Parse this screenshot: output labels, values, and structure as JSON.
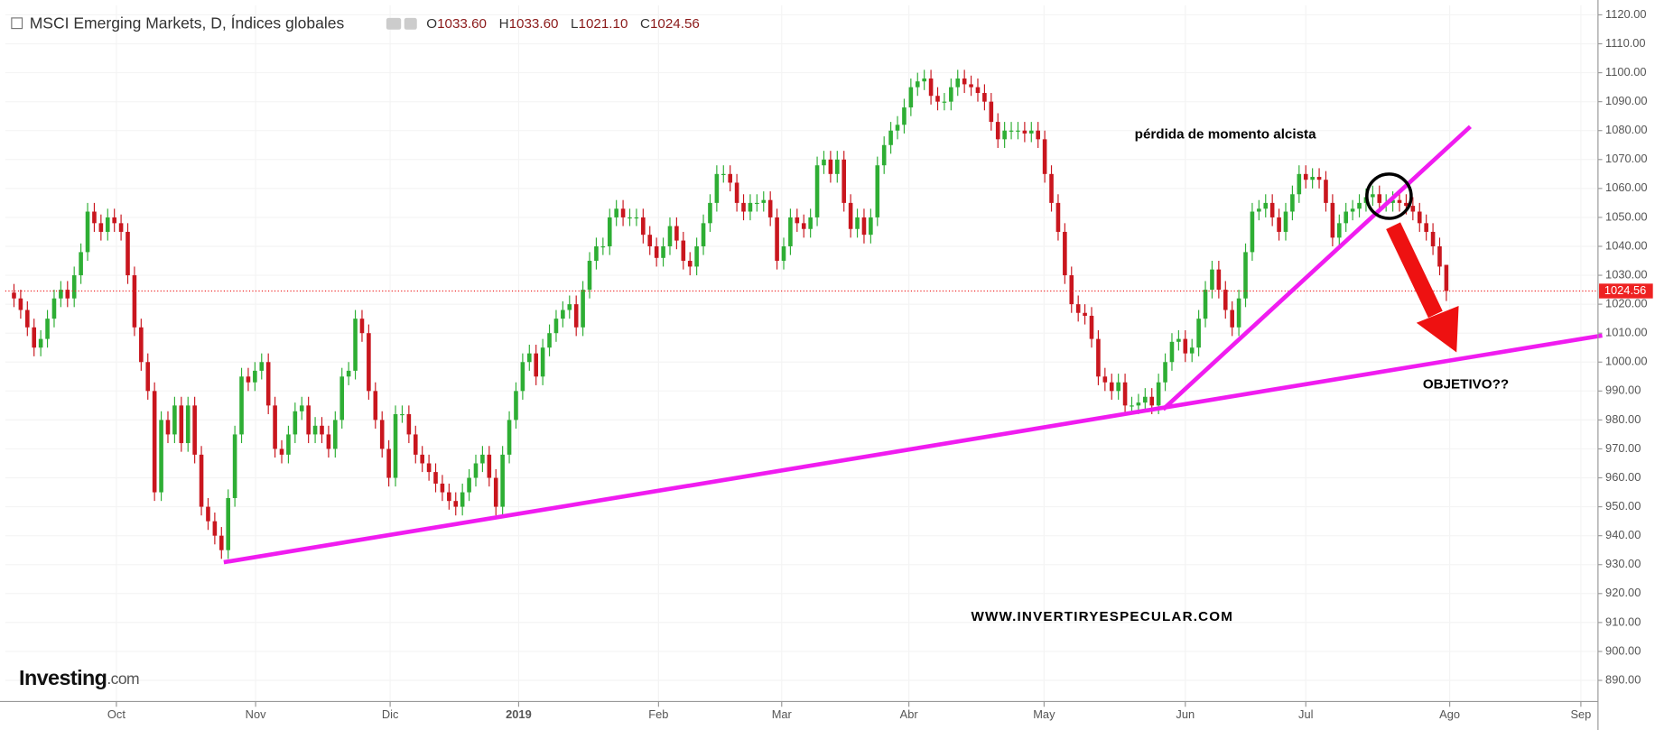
{
  "chart_data": {
    "type": "candlestick",
    "header": {
      "title": "MSCI Emerging Markets, D, Índices globales",
      "open_label": "O",
      "open": "1033.60",
      "high_label": "H",
      "high": "1033.60",
      "low_label": "L",
      "low": "1021.10",
      "close_label": "C",
      "close": "1024.56"
    },
    "annotations": {
      "momentum": "pérdida de momento alcista",
      "target": "OBJETIVO??",
      "website": "WWW.INVERTIRYESPECULAR.COM"
    },
    "logo": {
      "brand": "Investing",
      "domain": ".com"
    },
    "up_color": "#2eae34",
    "down_color": "#c9161e",
    "grid": true,
    "ylim": [
      882.7,
      1123.3
    ],
    "yticks": [
      {
        "value": 890,
        "label": "890.00"
      },
      {
        "value": 900,
        "label": "900.00"
      },
      {
        "value": 910,
        "label": "910.00"
      },
      {
        "value": 920,
        "label": "920.00"
      },
      {
        "value": 930,
        "label": "930.00"
      },
      {
        "value": 940,
        "label": "940.00"
      },
      {
        "value": 950,
        "label": "950.00"
      },
      {
        "value": 960,
        "label": "960.00"
      },
      {
        "value": 970,
        "label": "970.00"
      },
      {
        "value": 980,
        "label": "980.00"
      },
      {
        "value": 990,
        "label": "990.00"
      },
      {
        "value": 1000,
        "label": "1000.00"
      },
      {
        "value": 1010,
        "label": "1010.00"
      },
      {
        "value": 1020,
        "label": "1020.00"
      },
      {
        "value": 1030,
        "label": "1030.00"
      },
      {
        "value": 1040,
        "label": "1040.00"
      },
      {
        "value": 1050,
        "label": "1050.00"
      },
      {
        "value": 1060,
        "label": "1060.00"
      },
      {
        "value": 1070,
        "label": "1070.00"
      },
      {
        "value": 1080,
        "label": "1080.00"
      },
      {
        "value": 1090,
        "label": "1090.00"
      },
      {
        "value": 1100,
        "label": "1100.00"
      },
      {
        "value": 1110,
        "label": "1110.00"
      },
      {
        "value": 1120,
        "label": "1120.00"
      }
    ],
    "xlim": [
      -1.3,
      236.5
    ],
    "xticks": [
      {
        "value": 15.3,
        "label": "Oct"
      },
      {
        "value": 36.1,
        "label": "Nov"
      },
      {
        "value": 56.2,
        "label": "Dic"
      },
      {
        "value": 75.4,
        "label": "2019"
      },
      {
        "value": 96.3,
        "label": "Feb"
      },
      {
        "value": 114.7,
        "label": "Mar"
      },
      {
        "value": 133.7,
        "label": "Abr"
      },
      {
        "value": 153.9,
        "label": "May"
      },
      {
        "value": 175,
        "label": "Jun"
      },
      {
        "value": 193,
        "label": "Jul"
      },
      {
        "value": 214.5,
        "label": "Ago"
      },
      {
        "value": 234.1,
        "label": "Sep"
      }
    ],
    "candles": [
      [
        1024,
        1027,
        1019,
        1022
      ],
      [
        1022,
        1025,
        1015,
        1018
      ],
      [
        1018,
        1021,
        1009,
        1012
      ],
      [
        1012,
        1015,
        1002,
        1005
      ],
      [
        1005,
        1011,
        1002,
        1008
      ],
      [
        1008,
        1018,
        1005,
        1015
      ],
      [
        1015,
        1025,
        1012,
        1022
      ],
      [
        1022,
        1028,
        1019,
        1025
      ],
      [
        1025,
        1028,
        1019,
        1022
      ],
      [
        1022,
        1033,
        1019,
        1030
      ],
      [
        1030,
        1041,
        1027,
        1038
      ],
      [
        1038,
        1055,
        1035,
        1052
      ],
      [
        1052,
        1055,
        1045,
        1048
      ],
      [
        1048,
        1051,
        1042,
        1045
      ],
      [
        1045,
        1053,
        1042,
        1050
      ],
      [
        1050,
        1053,
        1045,
        1048
      ],
      [
        1048,
        1051,
        1042,
        1045
      ],
      [
        1045,
        1048,
        1027,
        1030
      ],
      [
        1030,
        1033,
        1009,
        1012
      ],
      [
        1012,
        1015,
        997,
        1000
      ],
      [
        1000,
        1003,
        987,
        990
      ],
      [
        990,
        993,
        952,
        955
      ],
      [
        955,
        983,
        952,
        980
      ],
      [
        980,
        983,
        972,
        975
      ],
      [
        975,
        988,
        972,
        985
      ],
      [
        985,
        988,
        969,
        972
      ],
      [
        972,
        988,
        969,
        985
      ],
      [
        985,
        988,
        965,
        968
      ],
      [
        968,
        971,
        947,
        950
      ],
      [
        950,
        953,
        942,
        945
      ],
      [
        945,
        948,
        937,
        940
      ],
      [
        940,
        943,
        932,
        935
      ],
      [
        935,
        956,
        932,
        953
      ],
      [
        953,
        978,
        950,
        975
      ],
      [
        975,
        998,
        972,
        995
      ],
      [
        995,
        998,
        990,
        993
      ],
      [
        993,
        1000,
        990,
        997
      ],
      [
        997,
        1003,
        994,
        1000
      ],
      [
        1000,
        1003,
        982,
        985
      ],
      [
        985,
        988,
        967,
        970
      ],
      [
        970,
        973,
        965,
        968
      ],
      [
        968,
        978,
        965,
        975
      ],
      [
        975,
        986,
        972,
        983
      ],
      [
        983,
        988,
        980,
        985
      ],
      [
        985,
        988,
        972,
        975
      ],
      [
        975,
        981,
        972,
        978
      ],
      [
        978,
        981,
        972,
        975
      ],
      [
        975,
        978,
        967,
        970
      ],
      [
        970,
        983,
        967,
        980
      ],
      [
        980,
        998,
        977,
        995
      ],
      [
        995,
        1000,
        992,
        997
      ],
      [
        997,
        1018,
        994,
        1015
      ],
      [
        1015,
        1018,
        1007,
        1010
      ],
      [
        1010,
        1013,
        987,
        990
      ],
      [
        990,
        993,
        977,
        980
      ],
      [
        980,
        983,
        967,
        970
      ],
      [
        970,
        973,
        957,
        960
      ],
      [
        960,
        985,
        957,
        982
      ],
      [
        982,
        985,
        979,
        982
      ],
      [
        982,
        985,
        972,
        975
      ],
      [
        975,
        978,
        965,
        968
      ],
      [
        968,
        971,
        962,
        965
      ],
      [
        965,
        968,
        959,
        962
      ],
      [
        962,
        965,
        955,
        958
      ],
      [
        958,
        961,
        952,
        955
      ],
      [
        955,
        958,
        949,
        952
      ],
      [
        952,
        955,
        947,
        950
      ],
      [
        950,
        958,
        947,
        955
      ],
      [
        955,
        963,
        952,
        960
      ],
      [
        960,
        968,
        957,
        965
      ],
      [
        965,
        971,
        962,
        968
      ],
      [
        968,
        971,
        957,
        960
      ],
      [
        960,
        963,
        947,
        950
      ],
      [
        950,
        971,
        947,
        968
      ],
      [
        968,
        983,
        965,
        980
      ],
      [
        980,
        993,
        977,
        990
      ],
      [
        990,
        1003,
        987,
        1000
      ],
      [
        1000,
        1006,
        997,
        1003
      ],
      [
        1003,
        1006,
        992,
        995
      ],
      [
        995,
        1008,
        992,
        1005
      ],
      [
        1005,
        1013,
        1002,
        1010
      ],
      [
        1010,
        1018,
        1007,
        1015
      ],
      [
        1015,
        1021,
        1012,
        1018
      ],
      [
        1018,
        1023,
        1015,
        1020
      ],
      [
        1020,
        1023,
        1009,
        1012
      ],
      [
        1012,
        1028,
        1009,
        1025
      ],
      [
        1025,
        1038,
        1022,
        1035
      ],
      [
        1035,
        1043,
        1032,
        1040
      ],
      [
        1040,
        1043,
        1037,
        1040
      ],
      [
        1040,
        1053,
        1037,
        1050
      ],
      [
        1050,
        1056,
        1047,
        1053
      ],
      [
        1053,
        1056,
        1047,
        1050
      ],
      [
        1050,
        1053,
        1047,
        1050
      ],
      [
        1050,
        1053,
        1047,
        1050
      ],
      [
        1050,
        1053,
        1041,
        1044
      ],
      [
        1044,
        1047,
        1037,
        1040
      ],
      [
        1040,
        1043,
        1033,
        1036
      ],
      [
        1036,
        1043,
        1033,
        1040
      ],
      [
        1040,
        1050,
        1037,
        1047
      ],
      [
        1047,
        1050,
        1039,
        1042
      ],
      [
        1042,
        1045,
        1032,
        1035
      ],
      [
        1035,
        1038,
        1030,
        1033
      ],
      [
        1033,
        1043,
        1030,
        1040
      ],
      [
        1040,
        1051,
        1037,
        1048
      ],
      [
        1048,
        1058,
        1045,
        1055
      ],
      [
        1055,
        1068,
        1052,
        1065
      ],
      [
        1065,
        1068,
        1062,
        1065
      ],
      [
        1065,
        1068,
        1059,
        1062
      ],
      [
        1062,
        1065,
        1052,
        1055
      ],
      [
        1055,
        1058,
        1049,
        1052
      ],
      [
        1052,
        1058,
        1049,
        1055
      ],
      [
        1055,
        1058,
        1052,
        1055
      ],
      [
        1055,
        1059,
        1052,
        1056
      ],
      [
        1056,
        1059,
        1047,
        1050
      ],
      [
        1050,
        1053,
        1032,
        1035
      ],
      [
        1035,
        1043,
        1032,
        1040
      ],
      [
        1040,
        1053,
        1037,
        1050
      ],
      [
        1050,
        1053,
        1045,
        1048
      ],
      [
        1048,
        1051,
        1043,
        1046
      ],
      [
        1046,
        1053,
        1043,
        1050
      ],
      [
        1050,
        1071,
        1047,
        1068
      ],
      [
        1068,
        1073,
        1065,
        1070
      ],
      [
        1070,
        1073,
        1062,
        1065
      ],
      [
        1065,
        1073,
        1062,
        1070
      ],
      [
        1070,
        1073,
        1052,
        1055
      ],
      [
        1055,
        1058,
        1043,
        1046
      ],
      [
        1046,
        1053,
        1043,
        1050
      ],
      [
        1050,
        1053,
        1041,
        1044
      ],
      [
        1044,
        1053,
        1041,
        1050
      ],
      [
        1050,
        1071,
        1047,
        1068
      ],
      [
        1068,
        1078,
        1065,
        1075
      ],
      [
        1075,
        1083,
        1072,
        1080
      ],
      [
        1080,
        1085,
        1077,
        1082
      ],
      [
        1082,
        1091,
        1079,
        1088
      ],
      [
        1088,
        1098,
        1085,
        1095
      ],
      [
        1095,
        1100,
        1092,
        1097
      ],
      [
        1097,
        1101,
        1094,
        1098
      ],
      [
        1098,
        1101,
        1089,
        1092
      ],
      [
        1092,
        1095,
        1087,
        1090
      ],
      [
        1090,
        1093,
        1087,
        1090
      ],
      [
        1090,
        1098,
        1087,
        1095
      ],
      [
        1095,
        1101,
        1092,
        1098
      ],
      [
        1098,
        1101,
        1093,
        1096
      ],
      [
        1096,
        1099,
        1092,
        1095
      ],
      [
        1095,
        1098,
        1090,
        1093
      ],
      [
        1093,
        1096,
        1087,
        1090
      ],
      [
        1090,
        1093,
        1080,
        1083
      ],
      [
        1083,
        1086,
        1074,
        1077
      ],
      [
        1077,
        1083,
        1074,
        1080
      ],
      [
        1080,
        1083,
        1077,
        1080
      ],
      [
        1080,
        1083,
        1077,
        1080
      ],
      [
        1080,
        1083,
        1076,
        1079
      ],
      [
        1079,
        1083,
        1076,
        1080
      ],
      [
        1080,
        1083,
        1074,
        1077
      ],
      [
        1077,
        1080,
        1062,
        1065
      ],
      [
        1065,
        1068,
        1052,
        1055
      ],
      [
        1055,
        1058,
        1042,
        1045
      ],
      [
        1045,
        1048,
        1027,
        1030
      ],
      [
        1030,
        1033,
        1017,
        1020
      ],
      [
        1020,
        1023,
        1014,
        1017
      ],
      [
        1017,
        1020,
        1013,
        1016
      ],
      [
        1016,
        1019,
        1005,
        1008
      ],
      [
        1008,
        1011,
        992,
        995
      ],
      [
        995,
        998,
        990,
        993
      ],
      [
        993,
        996,
        987,
        990
      ],
      [
        990,
        996,
        987,
        993
      ],
      [
        993,
        996,
        982,
        985
      ],
      [
        985,
        988,
        982,
        985
      ],
      [
        985,
        989,
        982,
        986
      ],
      [
        986,
        991,
        983,
        988
      ],
      [
        988,
        991,
        982,
        985
      ],
      [
        985,
        996,
        982,
        993
      ],
      [
        993,
        1003,
        990,
        1000
      ],
      [
        1000,
        1010,
        997,
        1007
      ],
      [
        1007,
        1011,
        1004,
        1008
      ],
      [
        1008,
        1011,
        1000,
        1003
      ],
      [
        1003,
        1008,
        1000,
        1005
      ],
      [
        1005,
        1018,
        1002,
        1015
      ],
      [
        1015,
        1028,
        1012,
        1025
      ],
      [
        1025,
        1035,
        1022,
        1032
      ],
      [
        1032,
        1035,
        1022,
        1025
      ],
      [
        1025,
        1028,
        1015,
        1018
      ],
      [
        1018,
        1021,
        1009,
        1012
      ],
      [
        1012,
        1025,
        1009,
        1022
      ],
      [
        1022,
        1041,
        1019,
        1038
      ],
      [
        1038,
        1055,
        1035,
        1052
      ],
      [
        1052,
        1056,
        1049,
        1053
      ],
      [
        1053,
        1058,
        1050,
        1055
      ],
      [
        1055,
        1058,
        1047,
        1050
      ],
      [
        1050,
        1053,
        1042,
        1045
      ],
      [
        1045,
        1055,
        1042,
        1052
      ],
      [
        1052,
        1061,
        1049,
        1058
      ],
      [
        1058,
        1068,
        1055,
        1065
      ],
      [
        1065,
        1068,
        1060,
        1063
      ],
      [
        1063,
        1067,
        1060,
        1064
      ],
      [
        1064,
        1067,
        1060,
        1063
      ],
      [
        1063,
        1066,
        1052,
        1055
      ],
      [
        1055,
        1058,
        1040,
        1043
      ],
      [
        1043,
        1051,
        1040,
        1048
      ],
      [
        1048,
        1055,
        1045,
        1052
      ],
      [
        1052,
        1056,
        1049,
        1053
      ],
      [
        1053,
        1058,
        1050,
        1055
      ],
      [
        1055,
        1060,
        1052,
        1057
      ],
      [
        1057,
        1061,
        1054,
        1058
      ],
      [
        1058,
        1061,
        1052,
        1055
      ],
      [
        1055,
        1058,
        1052,
        1055
      ],
      [
        1055,
        1059,
        1052,
        1056
      ],
      [
        1056,
        1059,
        1052,
        1055
      ],
      [
        1055,
        1058,
        1051,
        1054
      ],
      [
        1054,
        1057,
        1049,
        1052
      ],
      [
        1052,
        1055,
        1045,
        1048
      ],
      [
        1048,
        1051,
        1042,
        1045
      ],
      [
        1045,
        1048,
        1037,
        1040
      ],
      [
        1040,
        1043,
        1030,
        1033
      ],
      [
        1033.6,
        1033.6,
        1021.1,
        1024.56
      ]
    ]
  }
}
